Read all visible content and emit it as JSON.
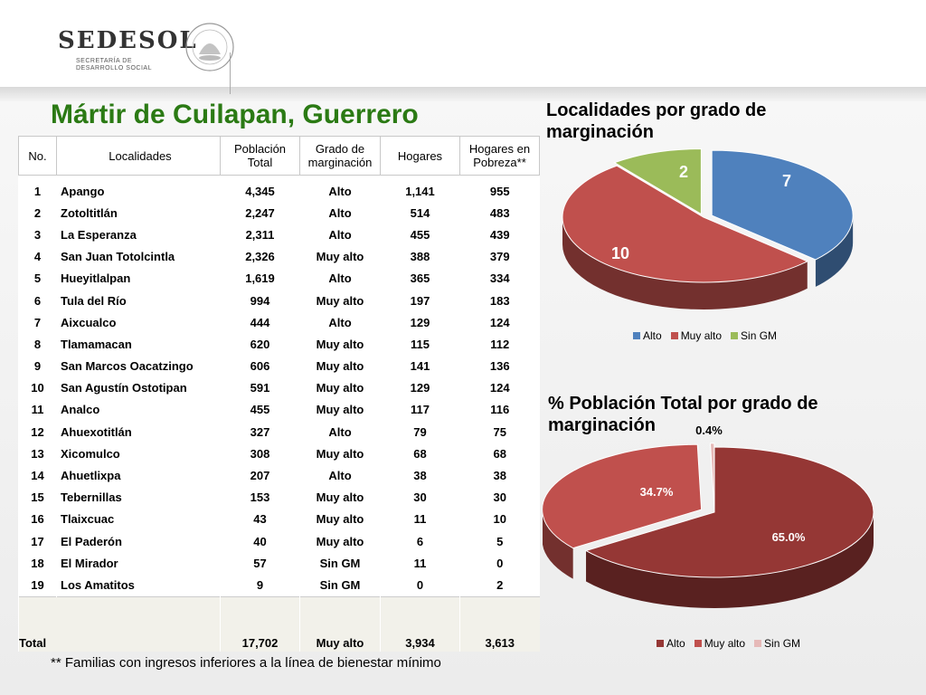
{
  "logo": {
    "name": "SEDESOL",
    "subtitle_line1": "SECRETARÍA DE",
    "subtitle_line2": "DESARROLLO SOCIAL",
    "seal_text": "ESTADOS UNIDOS MEXICANOS"
  },
  "title": "Mártir de Cuilapan, Guerrero",
  "table": {
    "headers": {
      "no": "No.",
      "localidades": "Localidades",
      "poblacion_l1": "Población",
      "poblacion_l2": "Total",
      "grado_l1": "Grado de",
      "grado_l2": "marginación",
      "hogares": "Hogares",
      "pobreza_l1": "Hogares en",
      "pobreza_l2": "Pobreza**"
    },
    "rows": [
      {
        "no": "1",
        "loc": "Apango",
        "pob": "4,345",
        "grado": "Alto",
        "hog": "1,141",
        "pobr": "955"
      },
      {
        "no": "2",
        "loc": "Zotoltitlán",
        "pob": "2,247",
        "grado": "Alto",
        "hog": "514",
        "pobr": "483"
      },
      {
        "no": "3",
        "loc": "La Esperanza",
        "pob": "2,311",
        "grado": "Alto",
        "hog": "455",
        "pobr": "439"
      },
      {
        "no": "4",
        "loc": "San Juan Totolcintla",
        "pob": "2,326",
        "grado": "Muy alto",
        "hog": "388",
        "pobr": "379"
      },
      {
        "no": "5",
        "loc": "Hueyitlalpan",
        "pob": "1,619",
        "grado": "Alto",
        "hog": "365",
        "pobr": "334"
      },
      {
        "no": "6",
        "loc": "Tula del Río",
        "pob": "994",
        "grado": "Muy alto",
        "hog": "197",
        "pobr": "183"
      },
      {
        "no": "7",
        "loc": "Aixcualco",
        "pob": "444",
        "grado": "Alto",
        "hog": "129",
        "pobr": "124"
      },
      {
        "no": "8",
        "loc": "Tlamamacan",
        "pob": "620",
        "grado": "Muy alto",
        "hog": "115",
        "pobr": "112"
      },
      {
        "no": "9",
        "loc": "San Marcos Oacatzingo",
        "pob": "606",
        "grado": "Muy alto",
        "hog": "141",
        "pobr": "136"
      },
      {
        "no": "10",
        "loc": "San Agustín Ostotipan",
        "pob": "591",
        "grado": "Muy alto",
        "hog": "129",
        "pobr": "124"
      },
      {
        "no": "11",
        "loc": "Analco",
        "pob": "455",
        "grado": "Muy alto",
        "hog": "117",
        "pobr": "116"
      },
      {
        "no": "12",
        "loc": "Ahuexotitlán",
        "pob": "327",
        "grado": "Alto",
        "hog": "79",
        "pobr": "75"
      },
      {
        "no": "13",
        "loc": "Xicomulco",
        "pob": "308",
        "grado": "Muy alto",
        "hog": "68",
        "pobr": "68"
      },
      {
        "no": "14",
        "loc": "Ahuetlixpa",
        "pob": "207",
        "grado": "Alto",
        "hog": "38",
        "pobr": "38"
      },
      {
        "no": "15",
        "loc": "Tebernillas",
        "pob": "153",
        "grado": "Muy alto",
        "hog": "30",
        "pobr": "30"
      },
      {
        "no": "16",
        "loc": "Tlaixcuac",
        "pob": "43",
        "grado": "Muy alto",
        "hog": "11",
        "pobr": "10"
      },
      {
        "no": "17",
        "loc": "El Paderón",
        "pob": "40",
        "grado": "Muy alto",
        "hog": "6",
        "pobr": "5"
      },
      {
        "no": "18",
        "loc": "El Mirador",
        "pob": "57",
        "grado": "Sin GM",
        "hog": "11",
        "pobr": "0"
      },
      {
        "no": "19",
        "loc": "Los Amatitos",
        "pob": "9",
        "grado": "Sin GM",
        "hog": "0",
        "pobr": "2"
      }
    ],
    "total": {
      "label": "Total",
      "pob": "17,702",
      "grado": "Muy alto",
      "hog": "3,934",
      "pobr": "3,613"
    }
  },
  "footnote": "** Familias con ingresos inferiores a la línea de bienestar mínimo",
  "colors": {
    "title_green": "#2b7a14",
    "chart1": {
      "alto": "#4f81bd",
      "muy_alto": "#c0504d",
      "sin_gm": "#9bbb59"
    },
    "chart2": {
      "alto": "#953735",
      "muy_alto": "#c0504d",
      "sin_gm": "#e6b9b8"
    }
  },
  "chart_data": [
    {
      "type": "pie",
      "title_l1": "Localidades por grado de",
      "title_l2": "marginación",
      "categories": [
        "Alto",
        "Muy alto",
        "Sin GM"
      ],
      "values": [
        7,
        10,
        2
      ],
      "labels": [
        "7",
        "10",
        "2"
      ],
      "legend": "bottom"
    },
    {
      "type": "pie",
      "title_l1": "% Población Total por grado de",
      "title_l2": "marginación",
      "categories": [
        "Alto",
        "Muy alto",
        "Sin GM"
      ],
      "values": [
        65.0,
        34.7,
        0.4
      ],
      "labels": [
        "65.0%",
        "34.7%",
        "0.4%"
      ],
      "legend": "bottom"
    }
  ]
}
